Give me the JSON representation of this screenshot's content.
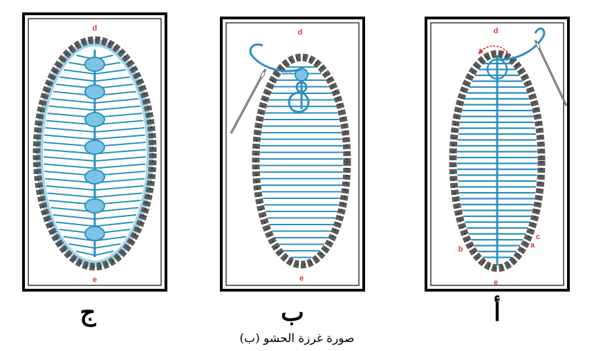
{
  "panels": [
    {
      "label": "ج",
      "point_labels": {
        "top": "d",
        "bottom": "e"
      }
    },
    {
      "label": "ب",
      "point_labels": {
        "top": "d",
        "bottom": "e"
      }
    },
    {
      "label": "أ",
      "point_labels": {
        "top": "d",
        "bottom": "e",
        "left": "b",
        "right_a": "a",
        "right_c": "c"
      }
    }
  ],
  "caption": "صورة غرزة الحشو (ب)",
  "colors": {
    "thread": "#2a8fc0",
    "thread_light": "#7cc4e6",
    "border_chain": "#5a5a5a",
    "label_red": "#e0312b",
    "needle": "#555555"
  }
}
